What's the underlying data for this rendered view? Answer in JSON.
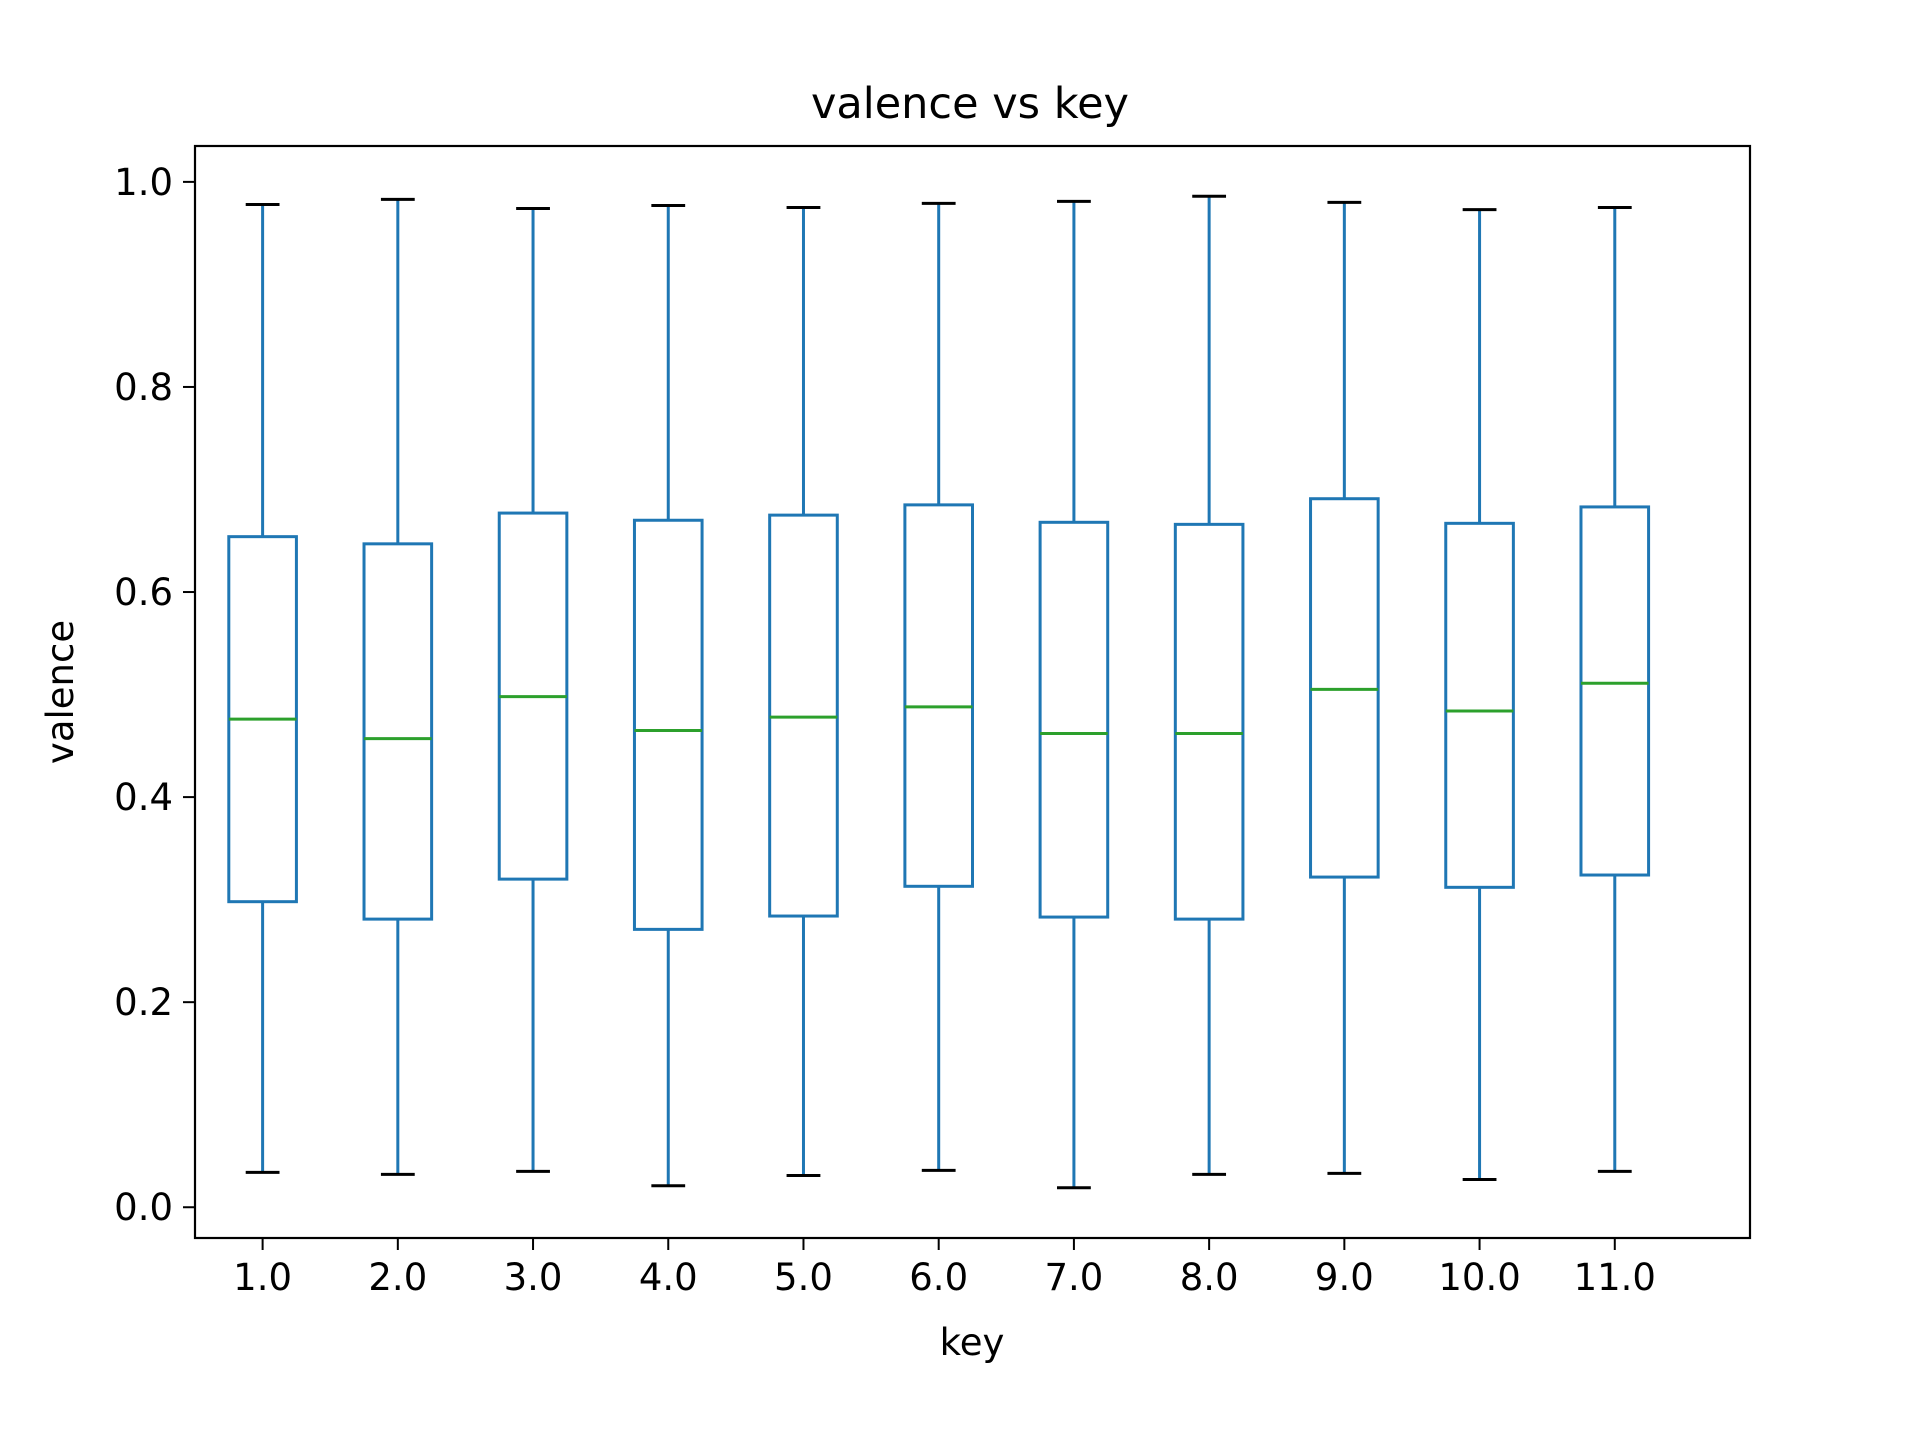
{
  "chart_data": {
    "type": "box",
    "title": "valence vs key",
    "xlabel": "key",
    "ylabel": "valence",
    "ylim": [
      -0.03,
      1.035
    ],
    "yticks": [
      0.0,
      0.2,
      0.4,
      0.6,
      0.8,
      1.0
    ],
    "ytick_labels": [
      "0.0",
      "0.2",
      "0.4",
      "0.6",
      "0.8",
      "1.0"
    ],
    "grid": false,
    "legend": "none",
    "colors": {
      "box": "#1f77b4",
      "median": "#2ca02c",
      "cap": "#000000"
    },
    "categories": [
      "1.0",
      "2.0",
      "3.0",
      "4.0",
      "5.0",
      "6.0",
      "7.0",
      "8.0",
      "9.0",
      "10.0",
      "11.0"
    ],
    "boxes": [
      {
        "whislo": 0.034,
        "q1": 0.298,
        "median": 0.476,
        "q3": 0.654,
        "whishi": 0.978
      },
      {
        "whislo": 0.032,
        "q1": 0.281,
        "median": 0.457,
        "q3": 0.647,
        "whishi": 0.983
      },
      {
        "whislo": 0.035,
        "q1": 0.32,
        "median": 0.498,
        "q3": 0.677,
        "whishi": 0.974
      },
      {
        "whislo": 0.021,
        "q1": 0.271,
        "median": 0.465,
        "q3": 0.67,
        "whishi": 0.977
      },
      {
        "whislo": 0.031,
        "q1": 0.284,
        "median": 0.478,
        "q3": 0.675,
        "whishi": 0.975
      },
      {
        "whislo": 0.036,
        "q1": 0.313,
        "median": 0.488,
        "q3": 0.685,
        "whishi": 0.979
      },
      {
        "whislo": 0.019,
        "q1": 0.283,
        "median": 0.462,
        "q3": 0.668,
        "whishi": 0.981
      },
      {
        "whislo": 0.032,
        "q1": 0.281,
        "median": 0.462,
        "q3": 0.666,
        "whishi": 0.986
      },
      {
        "whislo": 0.033,
        "q1": 0.322,
        "median": 0.505,
        "q3": 0.691,
        "whishi": 0.98
      },
      {
        "whislo": 0.027,
        "q1": 0.312,
        "median": 0.484,
        "q3": 0.667,
        "whishi": 0.973
      },
      {
        "whislo": 0.035,
        "q1": 0.324,
        "median": 0.511,
        "q3": 0.683,
        "whishi": 0.975
      }
    ]
  }
}
